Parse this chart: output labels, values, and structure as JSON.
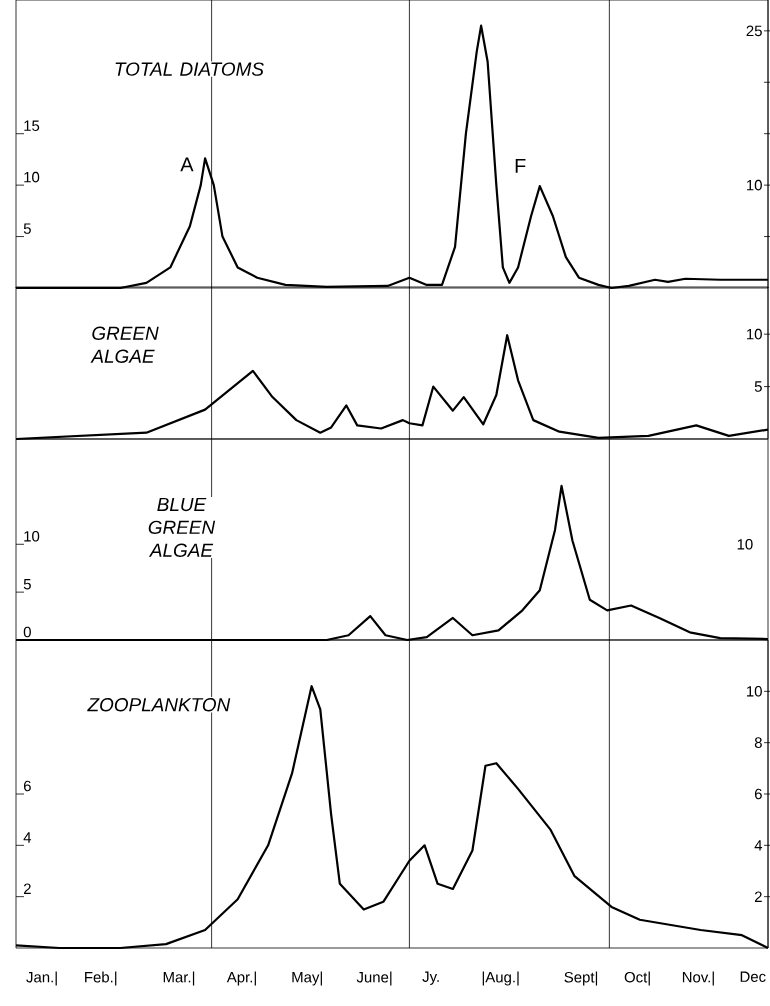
{
  "chart_data": [
    {
      "type": "line",
      "title": "TOTAL DIATOMS",
      "color": "#000000",
      "tick_labels": "y",
      "x": [
        "--01-01",
        "--02-18",
        "--03-02",
        "--03-13",
        "--03-22",
        "--03-27",
        "--03-29",
        "--04-02",
        "--04-06",
        "--04-13",
        "--04-22",
        "--05-05",
        "--05-24",
        "--06-21",
        "--07-01",
        "--07-09",
        "--07-16",
        "--07-22",
        "--07-27",
        "--08-01",
        "--08-03",
        "--08-06",
        "--08-10",
        "--08-13",
        "--08-16",
        "--08-20",
        "--08-26",
        "--08-30",
        "--09-05",
        "--09-11",
        "--09-17",
        "--09-26",
        "--10-02",
        "--10-10",
        "--10-22",
        "--10-28",
        "--11-05",
        "--11-21",
        "--12-13"
      ],
      "values": [
        0,
        0,
        0.5,
        2,
        6,
        10,
        12.6,
        10,
        5,
        2,
        1,
        0.3,
        0.1,
        0.2,
        1,
        0.3,
        0.3,
        4,
        15,
        23,
        25.5,
        22,
        10,
        2,
        0.5,
        2,
        7,
        9.9,
        7,
        3,
        1,
        0.3,
        0,
        0.2,
        0.8,
        0.6,
        0.9,
        0.8,
        0.8
      ],
      "xlim": [
        "--01-01",
        "--12-13"
      ],
      "ylim": [
        0,
        28
      ],
      "y2lim": [
        0,
        28
      ],
      "yticks": [
        5,
        10,
        15
      ],
      "y2ticks": [
        {
          "value": 5,
          "label": null
        },
        10,
        {
          "value": 15,
          "label": null
        },
        {
          "value": 20,
          "label": null
        },
        25
      ],
      "ref_lines": [
        {
          "axis": "x",
          "value": "--04-01",
          "color": "#000000"
        },
        {
          "axis": "x",
          "value": "--07-01",
          "color": "#000000"
        },
        {
          "axis": "x",
          "value": "--10-01",
          "color": "#000000"
        }
      ],
      "annotations": [
        {
          "text": "A",
          "x": "--03-29",
          "y": 12.6
        },
        {
          "text": "F",
          "x": "--08-30",
          "y": 9.9
        }
      ]
    },
    {
      "type": "line",
      "title": "GREEN ALGAE",
      "tick_labels": "y",
      "x": [
        "--01-01",
        "--03-02",
        "--03-29",
        "--04-20",
        "--04-29",
        "--05-10",
        "--05-21",
        "--05-26",
        "--06-02",
        "--06-07",
        "--06-18",
        "--06-28",
        "--07-01",
        "--07-07",
        "--07-12",
        "--07-21",
        "--07-26",
        "--08-04",
        "--08-10",
        "--08-15",
        "--08-20",
        "--08-27",
        "--09-08",
        "--09-26",
        "--10-19",
        "--11-10",
        "--11-25",
        "--12-13"
      ],
      "series": [
        {
          "color": "#000000",
          "axis": "y2",
          "values": [
            0,
            0.6,
            2.8,
            6.5,
            4,
            1.8,
            0.6,
            1.1,
            3.2,
            1.3,
            1.0,
            1.8,
            1.5,
            1.3,
            5,
            2.7,
            4,
            1.4,
            4.2,
            9.9,
            5.6,
            1.8,
            0.7,
            0.1,
            0.3,
            1.3,
            0.3,
            0.9
          ]
        }
      ],
      "xlim": [
        "--01-01",
        "--12-13"
      ],
      "y2lim": [
        0,
        14.5
      ],
      "y2ticks": [
        5,
        10
      ],
      "ref_lines": [
        {
          "axis": "x",
          "value": "--04-01",
          "color": "#000000"
        },
        {
          "axis": "x",
          "value": "--07-01",
          "color": "#000000"
        },
        {
          "axis": "x",
          "value": "--10-01",
          "color": "#000000"
        }
      ]
    },
    {
      "type": "line",
      "title": "BLUE GREEN ALGAE",
      "color": "#000000",
      "tick_labels": "y",
      "x": [
        "--01-01",
        "--05-24",
        "--06-03",
        "--06-13",
        "--06-20",
        "--06-30",
        "--07-09",
        "--07-21",
        "--07-30",
        "--08-11",
        "--08-22",
        "--08-30",
        "--09-06",
        "--09-09",
        "--09-14",
        "--09-22",
        "--09-30",
        "--10-11",
        "--10-24",
        "--11-07",
        "--11-21",
        "--12-13"
      ],
      "values": [
        0,
        0,
        0.5,
        2.5,
        0.5,
        0,
        0.3,
        2.3,
        0.5,
        1,
        3.1,
        5.2,
        11.5,
        16.1,
        10.4,
        4.2,
        3.1,
        3.6,
        2.3,
        0.8,
        0.2,
        0.1
      ],
      "xlim": [
        "--01-01",
        "--12-13"
      ],
      "ylim": [
        0,
        21
      ],
      "yticks": [
        0,
        5,
        10
      ],
      "ref_lines": [
        {
          "axis": "x",
          "value": "--04-01",
          "color": "#000000"
        },
        {
          "axis": "x",
          "value": "--07-01",
          "color": "#000000"
        },
        {
          "axis": "x",
          "value": "--10-01",
          "color": "#000000"
        }
      ],
      "annotations": [
        "10"
      ]
    },
    {
      "type": "line",
      "title": "ZOOPLANKTON",
      "color": "#000000",
      "x": [
        "--01-01",
        "--01-21",
        "--02-18",
        "--03-11",
        "--03-29",
        "--04-13",
        "--04-27",
        "--05-08",
        "--05-17",
        "--05-21",
        "--05-26",
        "--05-30",
        "--06-10",
        "--06-19",
        "--07-01",
        "--07-08",
        "--07-14",
        "--07-21",
        "--07-30",
        "--08-05",
        "--08-10",
        "--08-20",
        "--09-04",
        "--09-15",
        "--10-02",
        "--10-15",
        "--11-12",
        "--12-01",
        "--12-13"
      ],
      "values": [
        0.1,
        0,
        0,
        0.15,
        0.7,
        1.9,
        4,
        6.8,
        10.2,
        9.3,
        5.2,
        2.5,
        1.5,
        1.8,
        3.4,
        4,
        2.5,
        2.3,
        3.8,
        7.1,
        7.2,
        6.2,
        4.6,
        2.8,
        1.6,
        1.1,
        0.7,
        0.5,
        0
      ],
      "xlim": [
        "--01-01",
        "--12-13"
      ],
      "ylim": [
        0,
        12
      ],
      "y2lim": [
        0,
        12
      ],
      "yticks": [
        2,
        4,
        6
      ],
      "y2ticks": [
        2,
        4,
        6,
        8,
        10
      ],
      "xticks": [
        {
          "value": "--01-13",
          "label": "Jan.|"
        },
        {
          "value": "--02-09",
          "label": "Feb.|"
        },
        {
          "value": "--03-17",
          "label": "Mar.|"
        },
        {
          "value": "--04-15",
          "label": "Apr.|"
        },
        {
          "value": "--05-15",
          "label": "May|"
        },
        {
          "value": "--06-15",
          "label": "June|"
        },
        {
          "value": "--07-11",
          "label": "Jy."
        },
        {
          "value": "--08-12",
          "label": "|Aug.|"
        },
        {
          "value": "--09-18",
          "label": "Sept|"
        },
        {
          "value": "--10-14",
          "label": "Oct|"
        },
        {
          "value": "--11-11",
          "label": "Nov.|"
        },
        {
          "value": "--12-06",
          "label": "Dec"
        }
      ],
      "ref_lines": [
        {
          "axis": "x",
          "value": "--04-01",
          "color": "#000000"
        },
        {
          "axis": "x",
          "value": "--07-01",
          "color": "#000000"
        },
        {
          "axis": "x",
          "value": "--10-01",
          "color": "#000000"
        }
      ]
    }
  ]
}
